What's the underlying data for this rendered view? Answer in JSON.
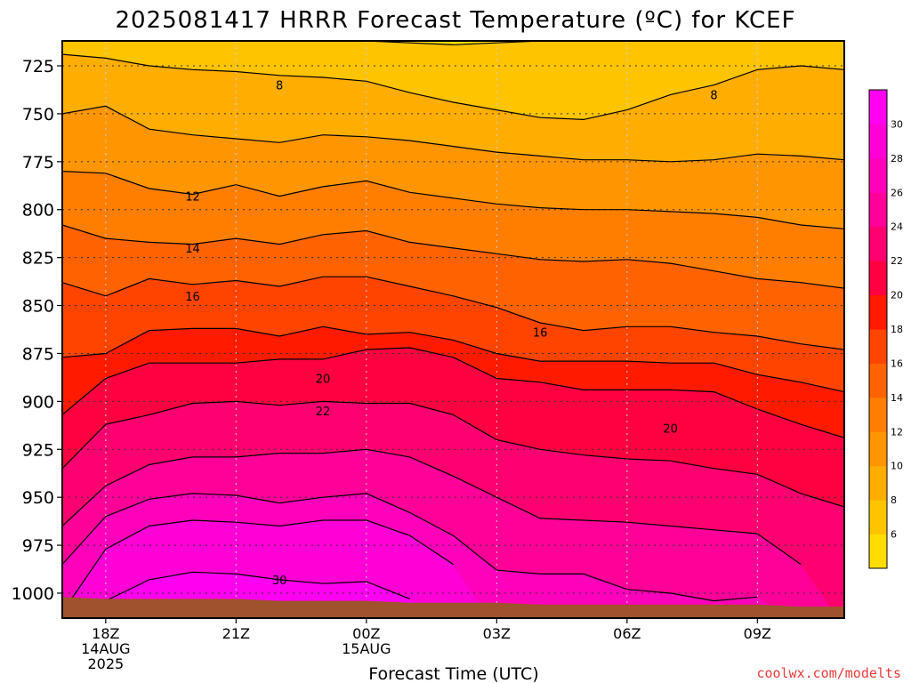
{
  "chart_data": {
    "type": "heatmap",
    "title": "2025081417 HRRR Forecast Temperature (ºC) for KCEF",
    "xlabel": "Forecast Time (UTC)",
    "ylabel": "",
    "credit": "coolwx.com/modelts",
    "x_range_hours": [
      -1,
      17
    ],
    "y_range_hpa": [
      712,
      1013
    ],
    "y_ticks": [
      {
        "value": 725,
        "label": "725"
      },
      {
        "value": 750,
        "label": "750"
      },
      {
        "value": 775,
        "label": "775"
      },
      {
        "value": 800,
        "label": "800"
      },
      {
        "value": 825,
        "label": "825"
      },
      {
        "value": 850,
        "label": "850"
      },
      {
        "value": 875,
        "label": "875"
      },
      {
        "value": 900,
        "label": "900"
      },
      {
        "value": 925,
        "label": "925"
      },
      {
        "value": 950,
        "label": "950"
      },
      {
        "value": 975,
        "label": "975"
      },
      {
        "value": 1000,
        "label": "1000"
      }
    ],
    "x_ticks": [
      {
        "hour": 0,
        "lines": [
          "18Z",
          "14AUG",
          "2025"
        ]
      },
      {
        "hour": 3,
        "lines": [
          "21Z"
        ]
      },
      {
        "hour": 6,
        "lines": [
          "00Z",
          "15AUG"
        ]
      },
      {
        "hour": 9,
        "lines": [
          "03Z"
        ]
      },
      {
        "hour": 12,
        "lines": [
          "06Z"
        ]
      },
      {
        "hour": 15,
        "lines": [
          "09Z"
        ]
      }
    ],
    "colorbar": {
      "labels": [
        "6",
        "8",
        "10",
        "12",
        "14",
        "16",
        "18",
        "20",
        "22",
        "24",
        "26",
        "28",
        "30"
      ],
      "colors": [
        "#ffdd00",
        "#ffc400",
        "#ffad00",
        "#ff9500",
        "#ff7e00",
        "#ff6200",
        "#ff4400",
        "#ff1a00",
        "#ff0040",
        "#ff0070",
        "#ff0099",
        "#ff00bb",
        "#ff00d6",
        "#ff00f0"
      ],
      "lim": [
        4,
        32
      ]
    },
    "hours": [
      -1,
      0,
      1,
      2,
      3,
      4,
      5,
      6,
      7,
      8,
      9,
      10,
      11,
      12,
      13,
      14,
      15,
      16,
      17
    ],
    "isotherm_levels": [
      6,
      8,
      10,
      12,
      14,
      16,
      18,
      20,
      22,
      24,
      26,
      28,
      30
    ],
    "isotherms": [
      {
        "level": 6,
        "p": [
          null,
          null,
          null,
          null,
          null,
          null,
          null,
          712,
          713,
          714,
          713,
          712,
          null,
          null,
          null,
          null,
          null,
          null,
          null
        ]
      },
      {
        "level": 8,
        "p": [
          719,
          721,
          725,
          727,
          728,
          730,
          731,
          733,
          739,
          744,
          748,
          752,
          753,
          748,
          740,
          735,
          727,
          725,
          727
        ]
      },
      {
        "level": 10,
        "p": [
          750,
          746,
          758,
          761,
          763,
          765,
          761,
          762,
          764,
          767,
          770,
          772,
          774,
          774,
          775,
          774,
          771,
          772,
          774
        ]
      },
      {
        "level": 12,
        "p": [
          780,
          781,
          789,
          792,
          787,
          793,
          788,
          785,
          791,
          794,
          797,
          799,
          800,
          800,
          801,
          802,
          804,
          808,
          810
        ]
      },
      {
        "level": 14,
        "p": [
          808,
          815,
          817,
          818,
          815,
          818,
          813,
          811,
          817,
          820,
          823,
          826,
          827,
          826,
          828,
          832,
          836,
          838,
          841
        ]
      },
      {
        "level": 16,
        "p": [
          838,
          845,
          836,
          839,
          837,
          840,
          835,
          835,
          840,
          845,
          851,
          859,
          863,
          861,
          861,
          864,
          866,
          870,
          873
        ]
      },
      {
        "level": 18,
        "p": [
          877,
          875,
          863,
          862,
          862,
          866,
          861,
          865,
          864,
          868,
          875,
          879,
          879,
          879,
          880,
          880,
          886,
          890,
          895
        ]
      },
      {
        "level": 20,
        "p": [
          907,
          888,
          880,
          880,
          880,
          878,
          878,
          873,
          872,
          877,
          888,
          890,
          894,
          894,
          894,
          895,
          904,
          912,
          919
        ]
      },
      {
        "level": 22,
        "p": [
          935,
          912,
          907,
          901,
          900,
          902,
          900,
          901,
          901,
          907,
          920,
          925,
          928,
          930,
          931,
          935,
          938,
          948,
          955
        ]
      },
      {
        "level": 24,
        "p": [
          965,
          944,
          933,
          929,
          929,
          927,
          927,
          925,
          929,
          939,
          950,
          961,
          962,
          963,
          965,
          967,
          969,
          985,
          null
        ]
      },
      {
        "level": 26,
        "p": [
          985,
          960,
          951,
          948,
          949,
          953,
          950,
          948,
          958,
          970,
          988,
          990,
          990,
          998,
          1000,
          1004,
          1002,
          null,
          null
        ]
      },
      {
        "level": 28,
        "p": [
          1010,
          977,
          965,
          962,
          963,
          965,
          962,
          962,
          970,
          985,
          null,
          null,
          null,
          null,
          null,
          null,
          null,
          null,
          null
        ]
      },
      {
        "level": 30,
        "p": [
          null,
          1004,
          993,
          989,
          990,
          993,
          995,
          994,
          1003,
          null,
          null,
          null,
          null,
          null,
          null,
          null,
          null,
          null,
          null
        ]
      }
    ],
    "isotherm_labels": [
      {
        "hour": 4.0,
        "pressure": 735,
        "text": "8"
      },
      {
        "hour": 14.0,
        "pressure": 740,
        "text": "8"
      },
      {
        "hour": 2.0,
        "pressure": 793,
        "text": "12"
      },
      {
        "hour": 2.0,
        "pressure": 820,
        "text": "14"
      },
      {
        "hour": 2.0,
        "pressure": 845,
        "text": "16"
      },
      {
        "hour": 10.0,
        "pressure": 864,
        "text": "16"
      },
      {
        "hour": 5.0,
        "pressure": 888,
        "text": "20"
      },
      {
        "hour": 13.0,
        "pressure": 914,
        "text": "20"
      },
      {
        "hour": 5.0,
        "pressure": 905,
        "text": "22"
      },
      {
        "hour": 4.0,
        "pressure": 993,
        "text": "30"
      }
    ],
    "ground_pressure": [
      1002,
      1003,
      1003,
      1003,
      1003,
      1004,
      1004,
      1004,
      1005,
      1005,
      1005,
      1006,
      1006,
      1006,
      1006,
      1006,
      1006,
      1007,
      1007
    ],
    "grid": true
  }
}
